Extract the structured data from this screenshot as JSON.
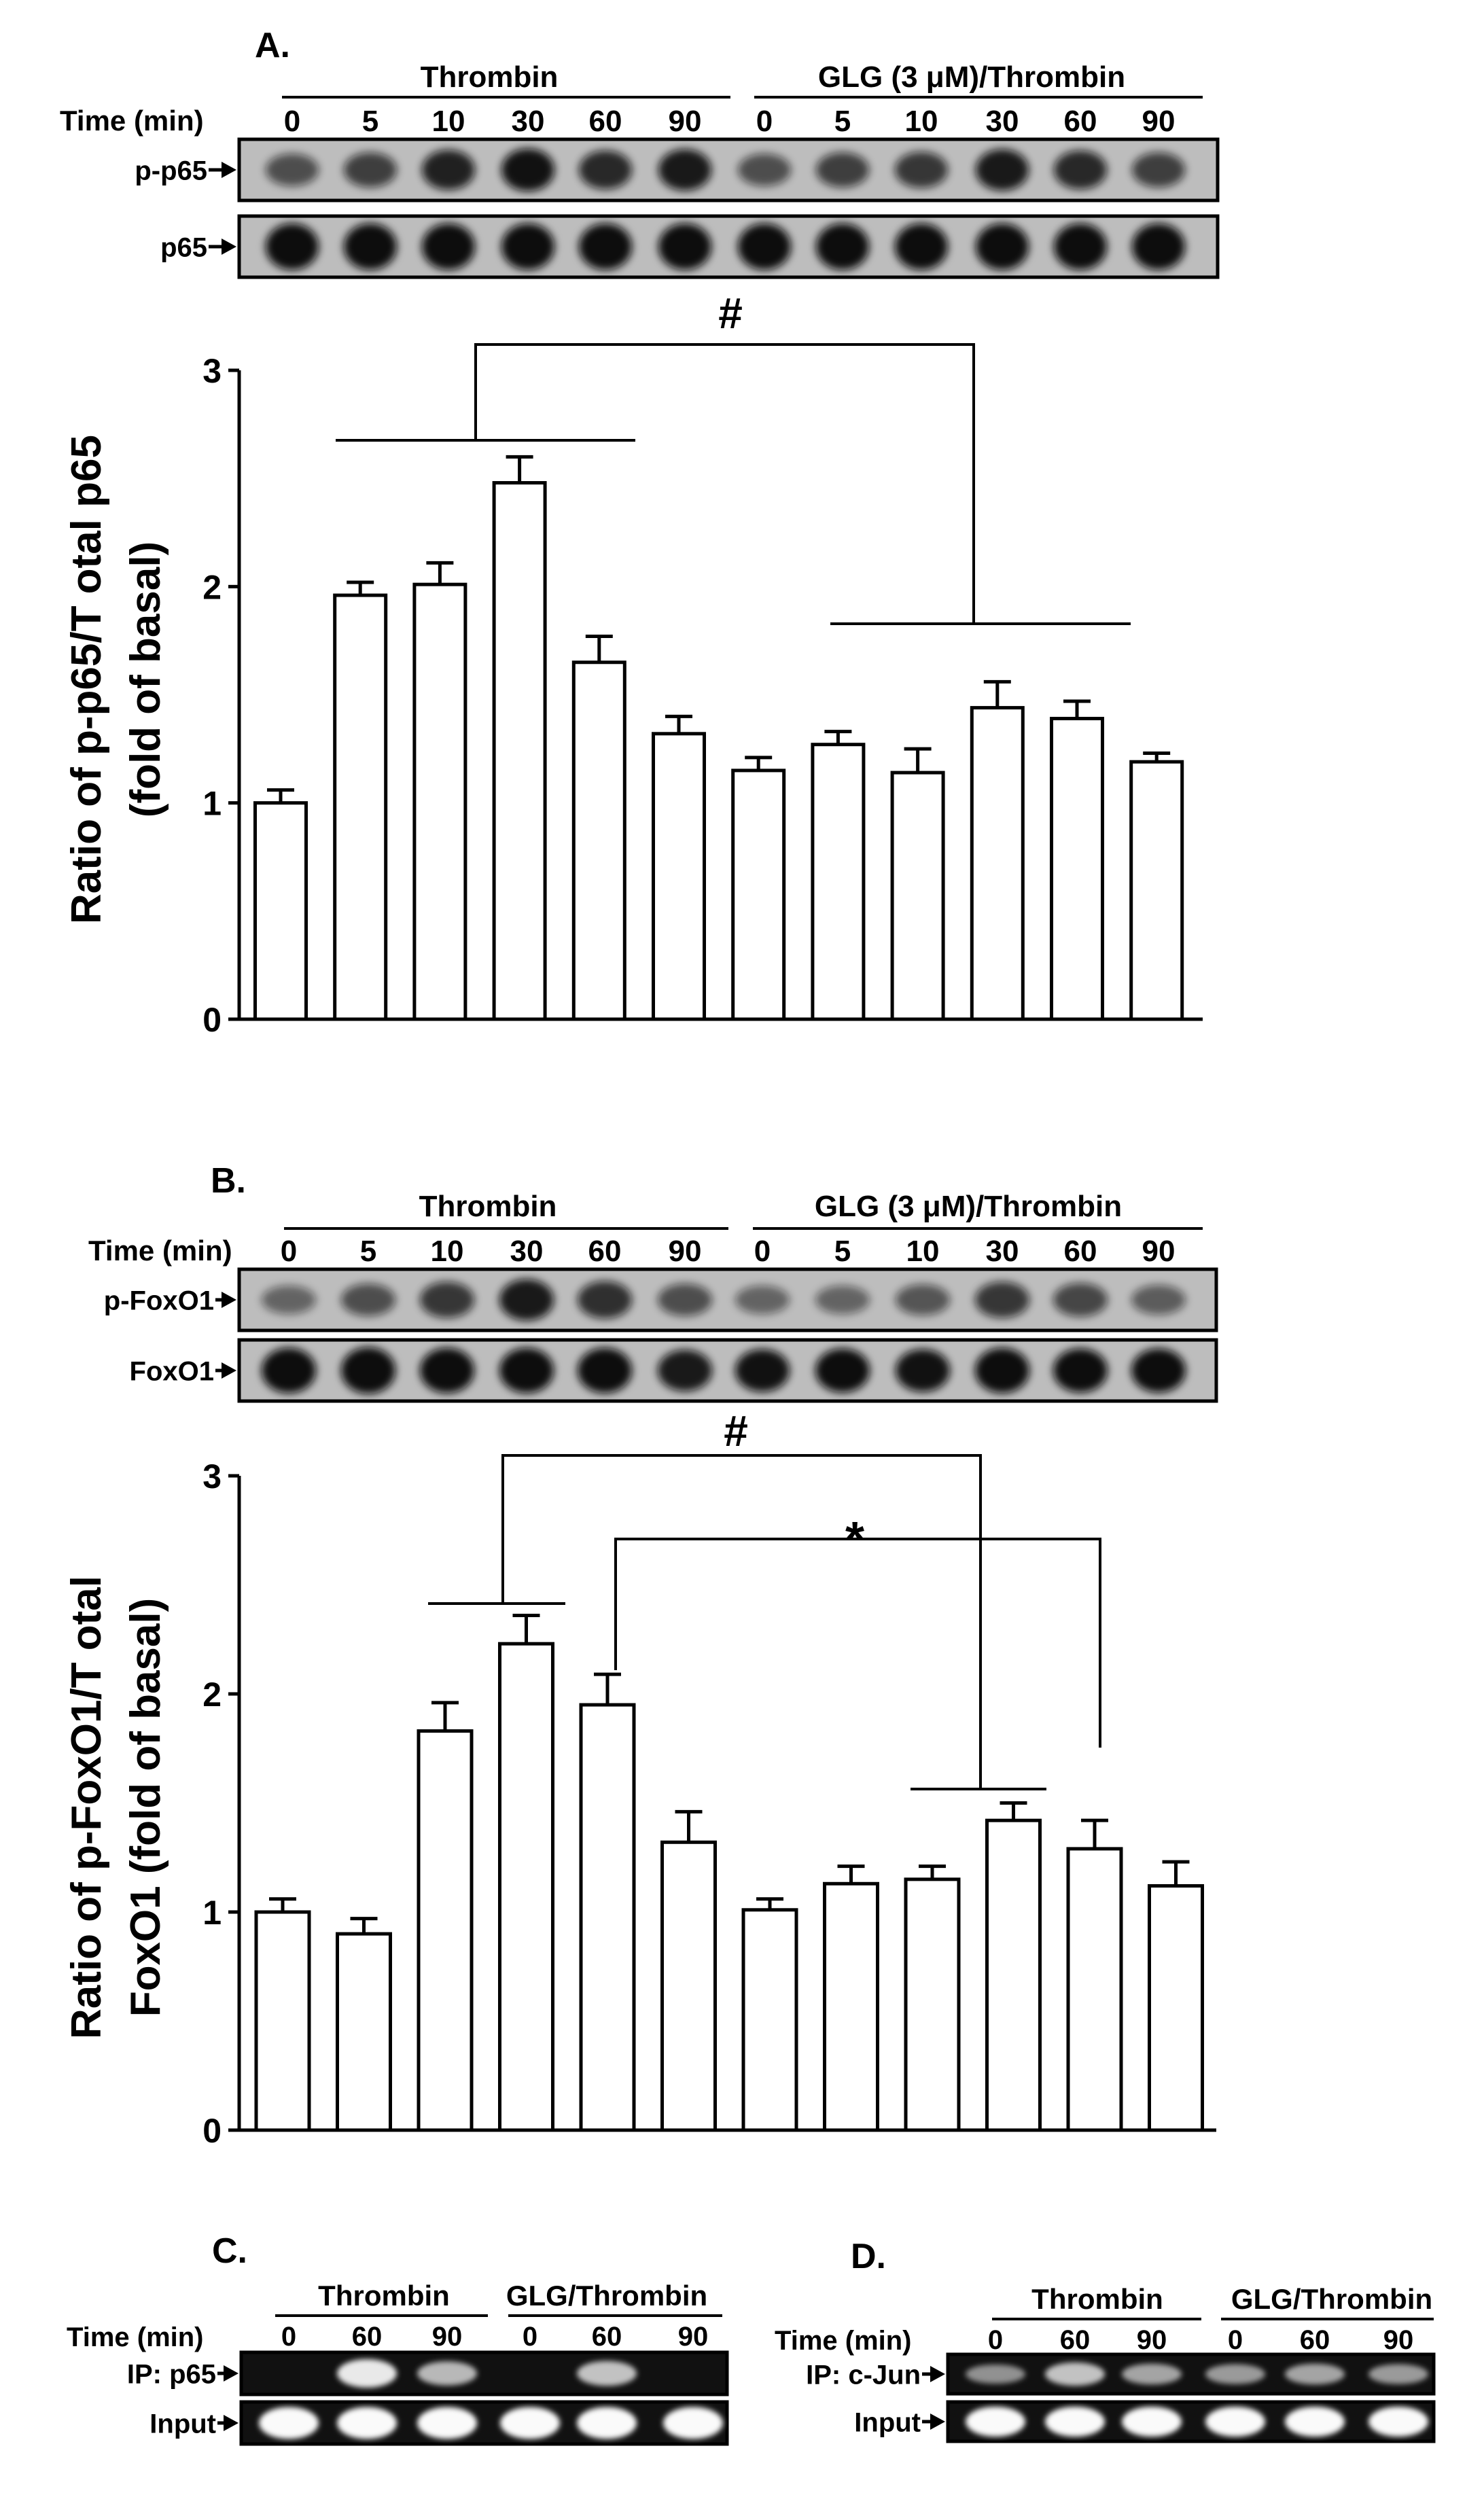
{
  "colors": {
    "bar_fill": "#ffffff",
    "bar_stroke": "#000000",
    "blot_background_light": "#bdbdbd",
    "blot_background_dark": "#111111",
    "band_dark": "#0c0c0c",
    "band_light": "#fafafa"
  },
  "panels": [
    {
      "id": "A",
      "label": "A.",
      "group_left": "Thrombin",
      "group_right": "GLG (3 μM)/Thrombin",
      "time_label": "Time (min)",
      "times": [
        "0",
        "5",
        "10",
        "30",
        "60",
        "90",
        "0",
        "5",
        "10",
        "30",
        "60",
        "90"
      ],
      "blot_rows": [
        {
          "label": "p-p65",
          "intensities": [
            0.45,
            0.55,
            0.75,
            0.85,
            0.7,
            0.8,
            0.45,
            0.55,
            0.6,
            0.8,
            0.7,
            0.55
          ]
        },
        {
          "label": "p65",
          "intensities": [
            1,
            1,
            1,
            1,
            1,
            1,
            1,
            1,
            1,
            1,
            1,
            1
          ]
        }
      ],
      "significance": "#"
    },
    {
      "id": "B",
      "label": "B.",
      "group_left": "Thrombin",
      "group_right": "GLG (3 μM)/Thrombin",
      "time_label": "Time (min)",
      "times": [
        "0",
        "5",
        "10",
        "30",
        "60",
        "90",
        "0",
        "5",
        "10",
        "30",
        "60",
        "90"
      ],
      "blot_rows": [
        {
          "label": "p-FoxO1",
          "intensities": [
            0.3,
            0.45,
            0.6,
            0.8,
            0.65,
            0.45,
            0.3,
            0.3,
            0.4,
            0.6,
            0.5,
            0.35
          ]
        },
        {
          "label": "FoxO1",
          "intensities": [
            0.95,
            1,
            0.95,
            0.95,
            0.95,
            0.8,
            0.85,
            0.9,
            0.85,
            0.95,
            0.9,
            0.9
          ]
        }
      ],
      "significance_1": "#",
      "significance_2": "*"
    },
    {
      "id": "C",
      "label": "C.",
      "group_left": "Thrombin",
      "group_right": "GLG/Thrombin",
      "time_label": "Time (min)",
      "times": [
        "0",
        "60",
        "90",
        "0",
        "60",
        "90"
      ],
      "blot_rows": [
        {
          "label": "IP: p65",
          "intensities": [
            0.0,
            0.8,
            0.55,
            0.0,
            0.6,
            0.0
          ]
        },
        {
          "label": "Input",
          "intensities": [
            1,
            1,
            1,
            1,
            1,
            1
          ]
        }
      ]
    },
    {
      "id": "D",
      "label": "D.",
      "group_left": "Thrombin",
      "group_right": "GLG/Thrombin",
      "time_label": "Time (min)",
      "times": [
        "0",
        "60",
        "90",
        "0",
        "60",
        "90"
      ],
      "blot_rows": [
        {
          "label": "IP: c-Jun",
          "intensities": [
            0.35,
            0.6,
            0.45,
            0.4,
            0.45,
            0.4
          ]
        },
        {
          "label": "Input",
          "intensities": [
            1,
            1,
            1,
            1,
            1,
            1
          ]
        }
      ]
    }
  ],
  "chart_data": [
    {
      "type": "bar",
      "panel": "A",
      "ylabel_line1": "Ratio of p-p65/T otal p65",
      "ylabel_line2": "(fold of basal)",
      "ylim": [
        0,
        3
      ],
      "yticks": [
        "0",
        "1",
        "2",
        "3"
      ],
      "categories": [
        "0",
        "5",
        "10",
        "30",
        "60",
        "90",
        "0",
        "5",
        "10",
        "30",
        "60",
        "90"
      ],
      "values": [
        1.0,
        1.96,
        2.01,
        2.48,
        1.65,
        1.32,
        1.15,
        1.27,
        1.14,
        1.44,
        1.39,
        1.19
      ],
      "errors": [
        0.06,
        0.06,
        0.1,
        0.12,
        0.12,
        0.08,
        0.06,
        0.06,
        0.11,
        0.12,
        0.08,
        0.04
      ]
    },
    {
      "type": "bar",
      "panel": "B",
      "ylabel_line1": "Ratio of p-FoxO1/T otal",
      "ylabel_line2": "FoxO1   (fold of basal)",
      "ylim": [
        0,
        3
      ],
      "yticks": [
        "0",
        "1",
        "2",
        "3"
      ],
      "categories": [
        "0",
        "5",
        "10",
        "30",
        "60",
        "90",
        "0",
        "5",
        "10",
        "30",
        "60",
        "90"
      ],
      "values": [
        1.0,
        0.9,
        1.83,
        2.23,
        1.95,
        1.32,
        1.01,
        1.13,
        1.15,
        1.42,
        1.29,
        1.12
      ],
      "errors": [
        0.06,
        0.07,
        0.13,
        0.13,
        0.14,
        0.14,
        0.05,
        0.08,
        0.06,
        0.08,
        0.13,
        0.11
      ]
    }
  ]
}
